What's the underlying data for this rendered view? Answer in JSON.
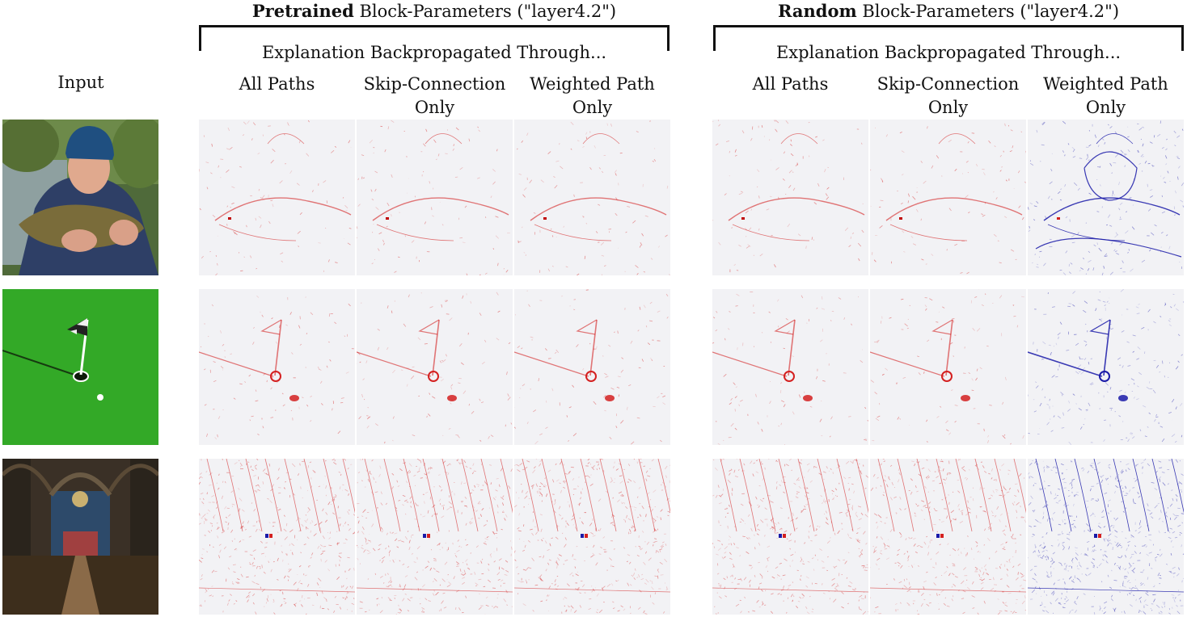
{
  "figure": {
    "input_label": "Input",
    "groups": [
      {
        "title_bold": "Pretrained",
        "title_rest": " Block-Parameters (\"layer4.2\")",
        "subtitle": "Explanation Backpropagated Through...",
        "columns": [
          {
            "line1": "All Paths",
            "line2": ""
          },
          {
            "line1": "Skip-Connection",
            "line2": "Only"
          },
          {
            "line1": "Weighted Path",
            "line2": "Only"
          }
        ]
      },
      {
        "title_bold": "Random",
        "title_rest": " Block-Parameters (\"layer4.2\")",
        "subtitle": "Explanation Backpropagated Through...",
        "columns": [
          {
            "line1": "All Paths",
            "line2": ""
          },
          {
            "line1": "Skip-Connection",
            "line2": "Only"
          },
          {
            "line1": "Weighted Path",
            "line2": "Only"
          }
        ]
      }
    ],
    "rows": [
      {
        "input": "photo of a man holding a fish",
        "maps": [
          "red",
          "red",
          "red",
          "red",
          "red",
          "blue"
        ]
      },
      {
        "input": "photo of a golf flag on green",
        "maps": [
          "red",
          "red",
          "red",
          "red",
          "red",
          "blue"
        ]
      },
      {
        "input": "photo of a church interior",
        "maps": [
          "red",
          "red",
          "red",
          "red",
          "red",
          "blue"
        ]
      }
    ],
    "colors": {
      "positive": "#d42020",
      "negative": "#1a1aa8",
      "background": "#f2f2f5"
    }
  }
}
